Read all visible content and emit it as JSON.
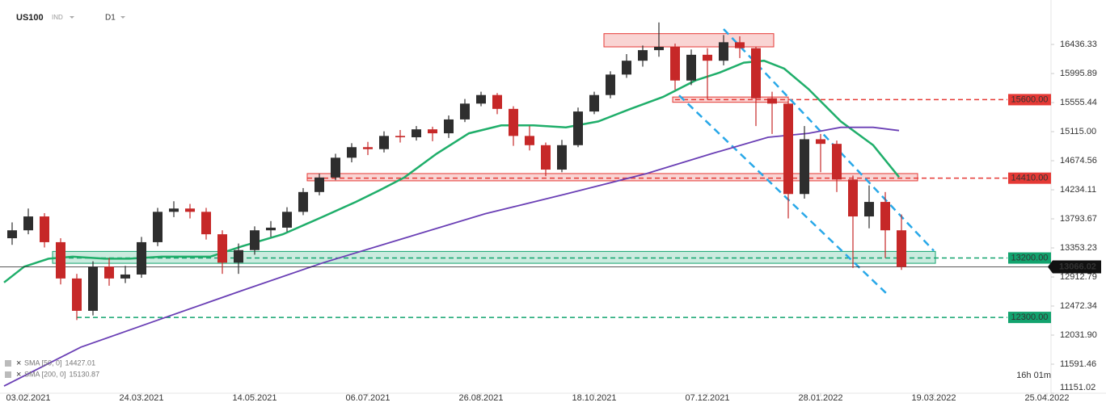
{
  "header": {
    "symbol": "US100",
    "market": "IND",
    "interval": "D1"
  },
  "chart_data": {
    "type": "candlestick",
    "x": [
      2.5,
      7.5,
      12.5,
      17.5,
      22.5,
      27.5,
      32.5,
      37.5,
      42.5,
      47.5,
      52.5,
      57.5,
      62.5,
      67.5,
      72.5,
      77.5,
      82.5,
      87.5,
      92.5,
      97.5,
      102.5,
      107.5,
      112.5,
      117.5,
      122.5,
      127.5,
      132.5,
      137.5,
      142.5,
      147.5,
      152.5,
      157.5,
      162.5,
      167.5,
      172.5,
      177.5,
      182.5,
      187.5,
      192.5,
      197.5,
      202.5,
      207.5,
      212.5,
      217.5,
      222.5,
      227.5,
      232.5,
      237.5,
      242.5,
      247.5,
      252.5,
      257.5,
      262.5,
      267.5,
      272.5,
      277.5
    ],
    "open": [
      13500,
      13620,
      13830,
      13440,
      12890,
      12400,
      13070,
      12890,
      12950,
      13440,
      13900,
      13950,
      13900,
      13560,
      13130,
      13320,
      13620,
      13660,
      13900,
      14200,
      14420,
      14720,
      14880,
      14850,
      15050,
      15030,
      15150,
      15090,
      15300,
      15540,
      15670,
      15460,
      15050,
      14910,
      14540,
      14910,
      15420,
      15670,
      15980,
      16190,
      16350,
      16400,
      15890,
      16280,
      16190,
      16470,
      16380,
      15620,
      15540,
      14170,
      15000,
      14930,
      14390,
      13830,
      14050,
      13620
    ],
    "high": [
      13740,
      13950,
      13880,
      13500,
      12960,
      13150,
      13200,
      13080,
      13520,
      13960,
      14060,
      14020,
      13960,
      13620,
      13420,
      13680,
      13760,
      13970,
      14260,
      14480,
      14780,
      14940,
      14960,
      15120,
      15140,
      15200,
      15190,
      15360,
      15610,
      15720,
      15700,
      15500,
      15200,
      14950,
      14990,
      15480,
      15720,
      16030,
      16290,
      16420,
      16770,
      16450,
      16360,
      16380,
      16580,
      16560,
      16400,
      15720,
      15580,
      15200,
      15080,
      14980,
      14450,
      14300,
      14200,
      13860
    ],
    "low": [
      13400,
      13560,
      13360,
      12800,
      12260,
      12330,
      12780,
      12820,
      12900,
      13380,
      13820,
      13800,
      13480,
      12960,
      12960,
      13250,
      13520,
      13600,
      13850,
      14150,
      14380,
      14650,
      14760,
      14800,
      14950,
      14980,
      14970,
      15020,
      15260,
      15500,
      15380,
      14900,
      14830,
      14440,
      14500,
      14880,
      15380,
      15620,
      15930,
      16100,
      16250,
      15750,
      15820,
      15600,
      16120,
      16230,
      15200,
      15080,
      13800,
      14100,
      14500,
      14200,
      13050,
      13650,
      13200,
      13020
    ],
    "close": [
      13620,
      13830,
      13440,
      12890,
      12400,
      13070,
      12890,
      12950,
      13440,
      13900,
      13950,
      13900,
      13560,
      13130,
      13320,
      13620,
      13660,
      13900,
      14200,
      14420,
      14720,
      14880,
      14850,
      15050,
      15030,
      15150,
      15090,
      15300,
      15540,
      15670,
      15460,
      15050,
      14910,
      14540,
      14910,
      15420,
      15670,
      15980,
      16190,
      16350,
      16400,
      15890,
      16280,
      16190,
      16470,
      16380,
      15620,
      15540,
      14170,
      15000,
      14930,
      14390,
      13830,
      14050,
      13620,
      13066.02
    ],
    "up_color": "#2e2e2e",
    "down_color": "#c62828",
    "xlim": [
      0,
      323.5
    ],
    "xticks": [
      {
        "value": 7.5,
        "label": "03.02.2021"
      },
      {
        "value": 42.5,
        "label": "24.03.2021"
      },
      {
        "value": 77.5,
        "label": "14.05.2021"
      },
      {
        "value": 112.5,
        "label": "06.07.2021"
      },
      {
        "value": 147.5,
        "label": "26.08.2021"
      },
      {
        "value": 182.5,
        "label": "18.10.2021"
      },
      {
        "value": 217.5,
        "label": "07.12.2021"
      },
      {
        "value": 252.5,
        "label": "28.01.2022"
      },
      {
        "value": 287.5,
        "label": "19.03.2022"
      },
      {
        "value": 322.5,
        "label": "25.04.2022"
      }
    ],
    "ylim": [
      11151.02,
      17110
    ],
    "yticks": [
      16436.33,
      15995.89,
      15555.44,
      {
        "value": 15115,
        "label": "15115.00"
      },
      14674.56,
      14234.11,
      13793.67,
      13353.23,
      12912.79,
      12472.34,
      {
        "value": 12031.9,
        "label": "12031.90"
      },
      11591.46,
      11151.02
    ],
    "overlays": [
      {
        "name": "SMA [50, 0]",
        "color": "#1fae6a",
        "x": [
          0,
          6.25,
          13.75,
          21.25,
          31.25,
          38.75,
          48.75,
          63.75,
          73.75,
          86.25,
          98.75,
          108.75,
          116.25,
          123.75,
          133.75,
          143.75,
          153.75,
          163.75,
          173.75,
          183.75,
          193.75,
          203.75,
          213.75,
          221.25,
          228.75,
          235,
          241.25,
          248.75,
          258.75,
          268.75,
          276.75
        ],
        "values": [
          12830,
          13070,
          13190,
          13220,
          13190,
          13190,
          13220,
          13220,
          13380,
          13560,
          13830,
          14050,
          14230,
          14420,
          14780,
          15090,
          15210,
          15210,
          15180,
          15270,
          15460,
          15640,
          15890,
          16010,
          16160,
          16190,
          16070,
          15760,
          15270,
          14910,
          14427.01
        ]
      },
      {
        "name": "SMA [200, 0]",
        "color": "#6a3fb5",
        "x": [
          0,
          23.75,
          48.75,
          73.75,
          98.75,
          123.75,
          148.75,
          173.75,
          198.75,
          218.75,
          236.25,
          248.75,
          258.75,
          268.75,
          276.75
        ],
        "values": [
          11260,
          11850,
          12280,
          12710,
          13130,
          13500,
          13870,
          14170,
          14480,
          14780,
          15030,
          15090,
          15180,
          15180,
          15130.87
        ]
      }
    ],
    "levels": [
      {
        "value": 15600,
        "label": "15600.00",
        "color": "#e53935"
      },
      {
        "value": 14410,
        "label": "14410.00",
        "color": "#e53935"
      },
      {
        "value": 13200,
        "label": "13200.00",
        "color": "#12a36e"
      },
      {
        "value": 12300,
        "label": "12300.00",
        "color": "#12a36e"
      }
    ],
    "zones": [
      {
        "xmin": 185.5,
        "xmax": 238,
        "ymin": 16400,
        "ymax": 16600,
        "color": "#e53935"
      },
      {
        "xmin": 206.75,
        "xmax": 242.5,
        "ymin": 15560,
        "ymax": 15640,
        "color": "#e53935"
      },
      {
        "xmin": 93.75,
        "xmax": 282.5,
        "ymin": 14370,
        "ymax": 14480,
        "color": "#e53935"
      },
      {
        "xmin": 15,
        "xmax": 288,
        "ymin": 13120,
        "ymax": 13300,
        "color": "#12a36e"
      }
    ],
    "trendlines": [
      {
        "x": [
          222.5,
          287.5
        ],
        "values": [
          16670,
          13310
        ],
        "color": "#29a8e8"
      },
      {
        "x": [
          208.75,
          273.25
        ],
        "values": [
          15665,
          12645
        ],
        "color": "#29a8e8"
      }
    ],
    "timer": "16h 01m"
  }
}
